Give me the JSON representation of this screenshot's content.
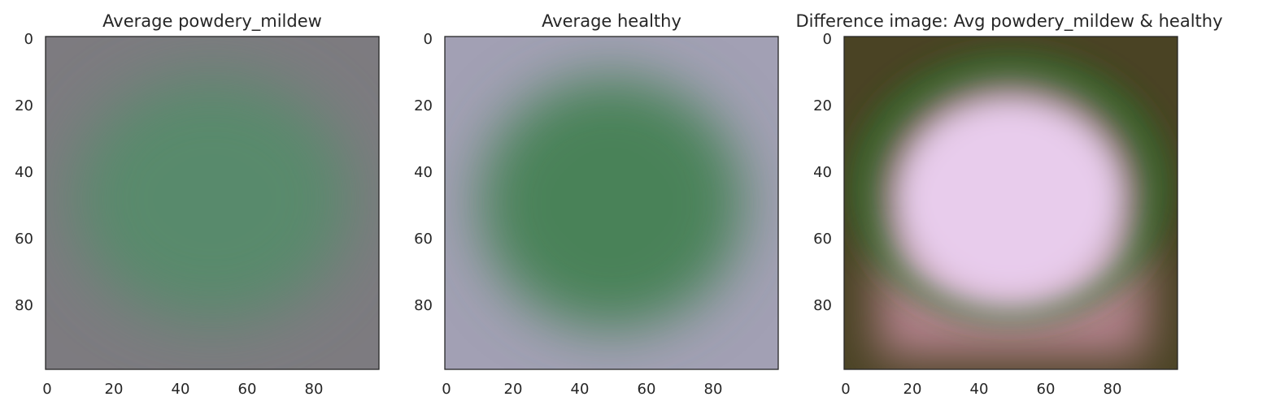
{
  "chart_data": [
    {
      "type": "heatmap",
      "title": "Average powdery_mildew",
      "xlabel": "",
      "ylabel": "",
      "xlim": [
        0,
        100
      ],
      "ylim": [
        100,
        0
      ],
      "x_ticks": [
        "0",
        "20",
        "40",
        "60",
        "80"
      ],
      "y_ticks": [
        "0",
        "20",
        "40",
        "60",
        "80"
      ],
      "grid": false,
      "colors": {
        "background": "#7d7b80",
        "center": "#588a6c",
        "edge": "#568a6a"
      }
    },
    {
      "type": "heatmap",
      "title": "Average healthy",
      "xlabel": "",
      "ylabel": "",
      "xlim": [
        0,
        100
      ],
      "ylim": [
        100,
        0
      ],
      "x_ticks": [
        "0",
        "20",
        "40",
        "60",
        "80"
      ],
      "y_ticks": [
        "0",
        "20",
        "40",
        "60",
        "80"
      ],
      "grid": false,
      "colors": {
        "background": "#a2a0b4",
        "center": "#4a8258",
        "edge": "#5f8f6e"
      }
    },
    {
      "type": "heatmap",
      "title": "Difference image: Avg powdery_mildew & healthy",
      "xlabel": "",
      "ylabel": "",
      "xlim": [
        0,
        100
      ],
      "ylim": [
        100,
        0
      ],
      "x_ticks": [
        "0",
        "20",
        "40",
        "60",
        "80"
      ],
      "y_ticks": [
        "0",
        "20",
        "40",
        "60",
        "80"
      ],
      "grid": false,
      "colors": {
        "background": "#4a4324",
        "center": "#e8ccec",
        "ring": "#2f6e2a",
        "lower": "#c88ea0"
      }
    }
  ]
}
